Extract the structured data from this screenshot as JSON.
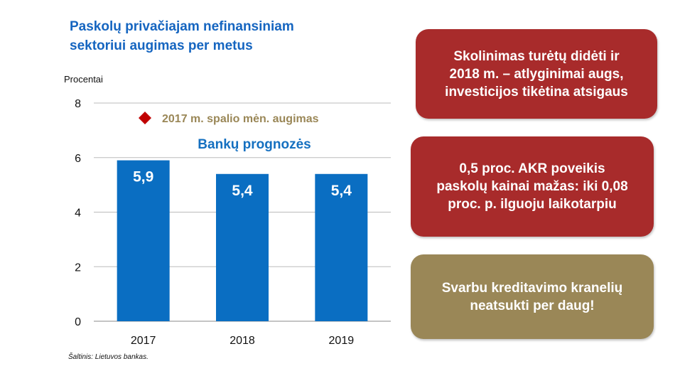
{
  "title_lines": [
    "Paskolų privačiajam nefinansiniam",
    "sektoriui augimas per metus"
  ],
  "source": "Šaltinis: Lietuvos bankas.",
  "chart_data": {
    "type": "bar",
    "title": "Paskolų privačiajam nefinansiniam sektoriui augimas per metus",
    "ylabel": "Procentai",
    "xlabel": "",
    "categories": [
      "2017",
      "2018",
      "2019"
    ],
    "values": [
      5.9,
      5.4,
      5.4
    ],
    "data_labels": [
      "5,9",
      "5,4",
      "5,4"
    ],
    "ylim": [
      0,
      8
    ],
    "yticks": [
      0,
      2,
      4,
      6,
      8
    ],
    "grid": true,
    "legend": {
      "marker_label": "2017 m. spalio mėn. augimas",
      "marker_color": "#c00000",
      "series_label": "Bankų prognozės"
    },
    "bar_color": "#0a6ec2"
  },
  "boxes": [
    {
      "lines": [
        "Skolinimas turėtų didėti ir",
        "2018 m. – atlyginimai augs,",
        "investicijos tikėtina atsigaus"
      ],
      "color": "#a82b2b"
    },
    {
      "lines": [
        "0,5 proc. AKR poveikis",
        "paskolų kainai mažas: iki 0,08",
        "proc. p. ilguoju laikotarpiu"
      ],
      "color": "#a82b2b"
    },
    {
      "lines": [
        "Svarbu kreditavimo kranelių",
        "neatsukti per daug!"
      ],
      "color": "#9a8757"
    }
  ]
}
